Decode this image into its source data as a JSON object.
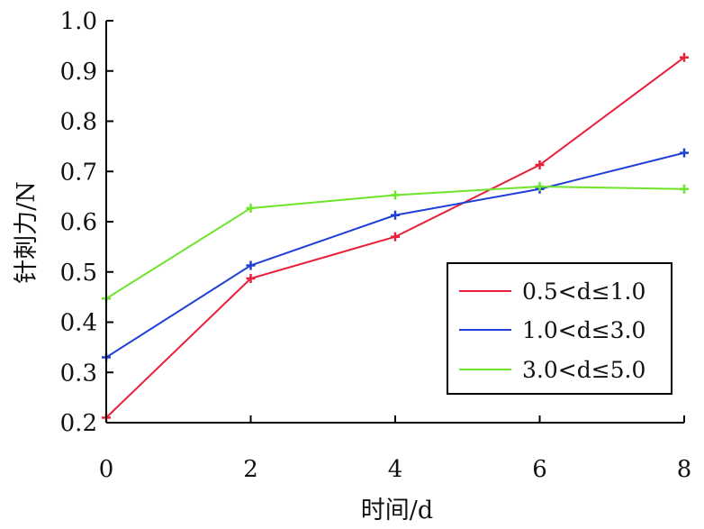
{
  "chart_data": {
    "type": "line",
    "xlabel": "时间/d",
    "ylabel": "针刺力/N",
    "x": [
      0,
      2,
      4,
      6,
      8
    ],
    "xlim": [
      0,
      8
    ],
    "ylim": [
      0.2,
      1.0
    ],
    "xticks": [
      0,
      2,
      4,
      6,
      8
    ],
    "yticks": [
      "0.2",
      "0.3",
      "0.4",
      "0.5",
      "0.6",
      "0.7",
      "0.8",
      "0.9",
      "1.0"
    ],
    "grid": false,
    "legend_position": "right",
    "series": [
      {
        "name": "0.5<d≤1.0",
        "color": "#e8203a",
        "values": [
          0.21,
          0.487,
          0.57,
          0.713,
          0.927
        ]
      },
      {
        "name": "1.0<d≤3.0",
        "color": "#1f3fd6",
        "values": [
          0.33,
          0.513,
          0.613,
          0.665,
          0.737
        ]
      },
      {
        "name": "3.0<d≤5.0",
        "color": "#6ee42a",
        "values": [
          0.447,
          0.627,
          0.653,
          0.67,
          0.665
        ]
      }
    ]
  }
}
